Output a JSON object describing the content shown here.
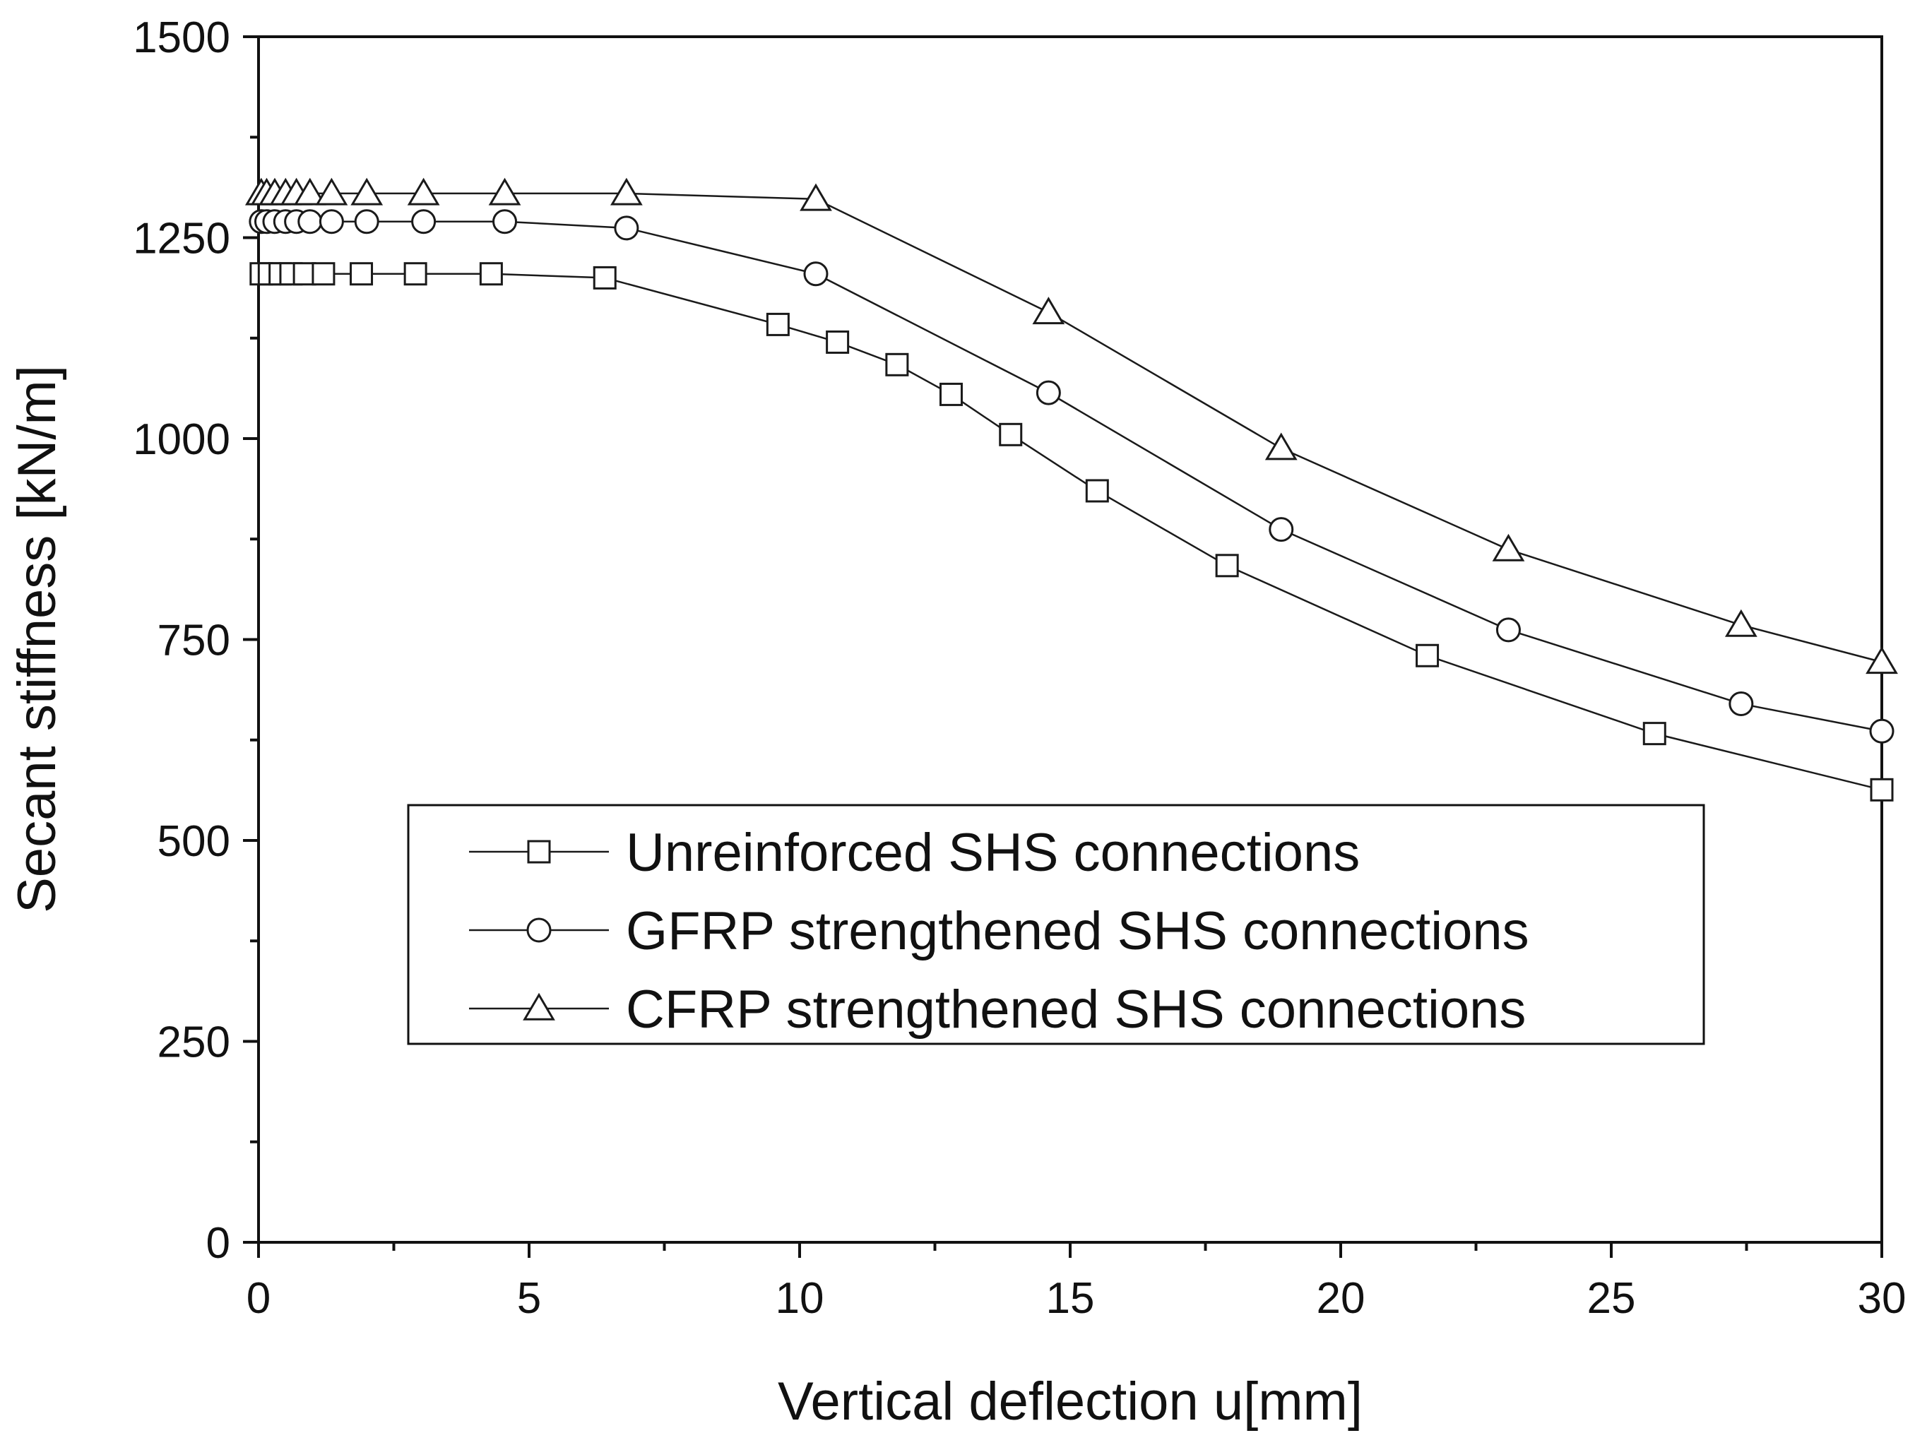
{
  "chart_data": {
    "type": "line",
    "title": "",
    "xlabel": "Vertical deflection u[mm]",
    "ylabel": "Secant stiffness [kN/m]",
    "xlim": [
      0,
      30
    ],
    "ylim": [
      0,
      1500
    ],
    "xticks": [
      0,
      5,
      10,
      15,
      20,
      25,
      30
    ],
    "yticks": [
      0,
      250,
      500,
      750,
      1000,
      1250,
      1500
    ],
    "xtick_labels": [
      "0",
      "5",
      "10",
      "15",
      "20",
      "25",
      "30"
    ],
    "ytick_labels": [
      "0",
      "250",
      "500",
      "750",
      "1000",
      "1250",
      "1500"
    ],
    "grid": false,
    "legend_position": "center-right",
    "series": [
      {
        "name": "Unreinforced SHS connections",
        "marker": "square",
        "x": [
          0.05,
          0.2,
          0.4,
          0.6,
          0.85,
          1.2,
          1.9,
          2.9,
          4.3,
          6.4,
          9.6,
          10.7,
          11.8,
          12.8,
          13.9,
          15.5,
          17.9,
          21.6,
          25.8,
          30.0
        ],
        "y": [
          1205,
          1205,
          1205,
          1205,
          1205,
          1205,
          1205,
          1205,
          1205,
          1200,
          1142,
          1120,
          1092,
          1055,
          1005,
          935,
          842,
          730,
          633,
          563
        ]
      },
      {
        "name": "GFRP strengthened SHS connections",
        "marker": "circle",
        "x": [
          0.05,
          0.15,
          0.3,
          0.5,
          0.7,
          0.95,
          1.35,
          2.0,
          3.05,
          4.55,
          6.8,
          10.3,
          14.6,
          18.9,
          23.1,
          27.4,
          30.0
        ],
        "y": [
          1270,
          1270,
          1270,
          1270,
          1270,
          1270,
          1270,
          1270,
          1270,
          1270,
          1262,
          1205,
          1057,
          887,
          762,
          670,
          636
        ]
      },
      {
        "name": "CFRP strengthened SHS connections",
        "marker": "triangle",
        "x": [
          0.05,
          0.15,
          0.3,
          0.5,
          0.7,
          0.95,
          1.35,
          2.0,
          3.05,
          4.55,
          6.8,
          10.3,
          14.6,
          18.9,
          23.1,
          27.4,
          30.0
        ],
        "y": [
          1305,
          1305,
          1305,
          1305,
          1305,
          1305,
          1305,
          1305,
          1305,
          1305,
          1305,
          1298,
          1157,
          988,
          862,
          768,
          722
        ]
      }
    ]
  },
  "colors": {
    "axis": "#111111",
    "series_line": "#1a1a1a",
    "marker_fill": "#ffffff",
    "background": "#ffffff"
  }
}
